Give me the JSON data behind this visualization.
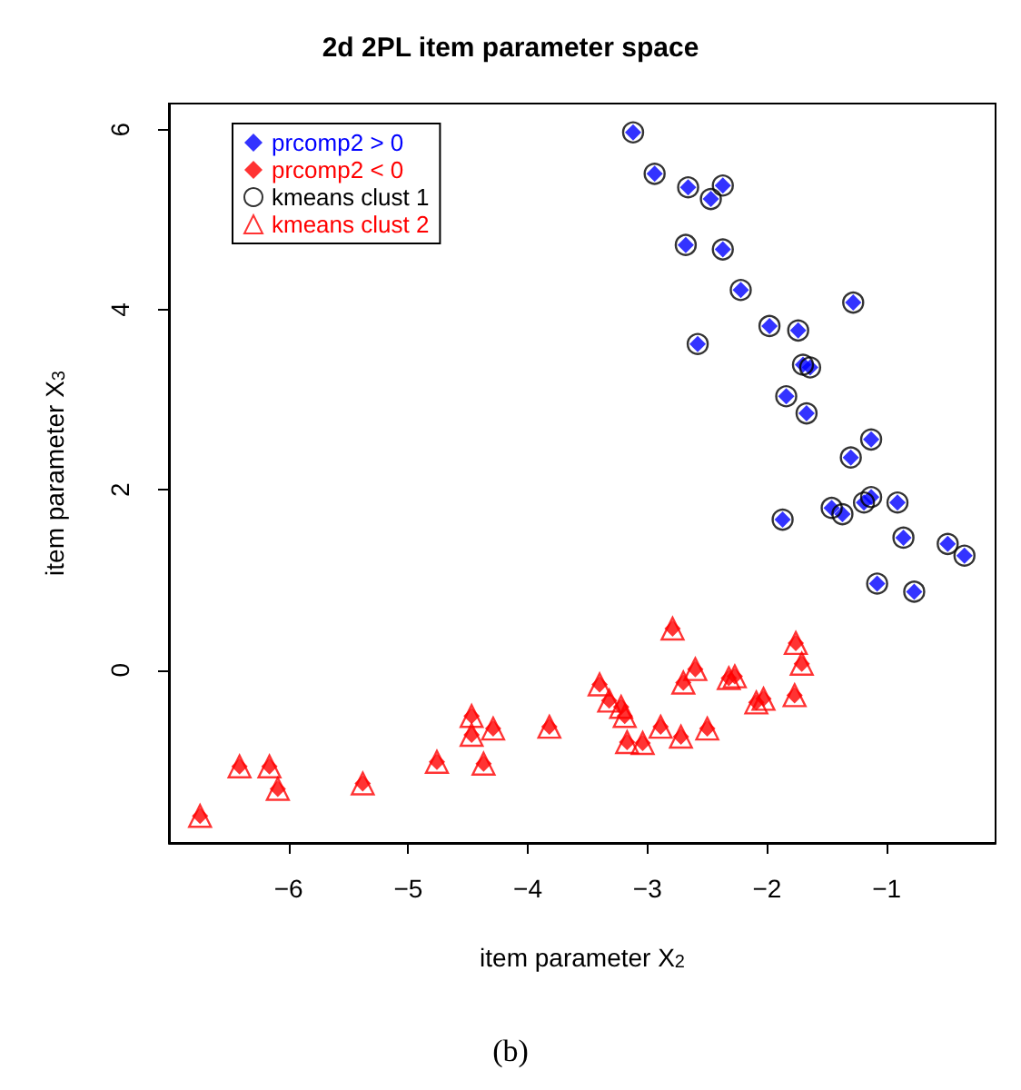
{
  "chart_data": {
    "type": "scatter",
    "title": "2d 2PL item parameter space",
    "xlabel": "item parameter X$_{2}$",
    "ylabel": "item parameter X$_{3}$",
    "xlim": [
      -7.0,
      -0.09
    ],
    "ylim": [
      -1.92,
      6.29
    ],
    "xticks": [
      -6,
      -5,
      -4,
      -3,
      -2,
      -1
    ],
    "yticks": [
      0,
      2,
      4,
      6
    ],
    "grid": false,
    "legend": "top left",
    "annotations": [
      "(b)"
    ],
    "series": [
      {
        "name": "prcomp2 > 0",
        "color": "#0000ff",
        "marker": "diamond",
        "x": [
          -3.12,
          -2.94,
          -2.66,
          -2.37,
          -2.47,
          -2.68,
          -2.37,
          -2.22,
          -1.28,
          -1.98,
          -1.74,
          -2.58,
          -1.7,
          -1.64,
          -1.84,
          -1.67,
          -1.13,
          -1.3,
          -1.46,
          -1.37,
          -1.19,
          -1.13,
          -0.91,
          -1.87,
          -0.86,
          -0.49,
          -0.35,
          -1.08,
          -0.77
        ],
        "values": [
          5.97,
          5.51,
          5.36,
          5.38,
          5.23,
          4.72,
          4.67,
          4.22,
          4.08,
          3.82,
          3.77,
          3.62,
          3.39,
          3.36,
          3.04,
          2.85,
          2.56,
          2.36,
          1.8,
          1.73,
          1.86,
          1.92,
          1.86,
          1.67,
          1.47,
          1.4,
          1.27,
          0.96,
          0.87
        ]
      },
      {
        "name": "prcomp2 < 0",
        "color": "#ff0000",
        "marker": "diamond",
        "x": [
          -2.79,
          -1.76,
          -1.71,
          -2.6,
          -2.7,
          -3.4,
          -2.32,
          -2.27,
          -3.32,
          -3.22,
          -3.19,
          -2.09,
          -2.03,
          -1.77,
          -4.47,
          -4.47,
          -4.29,
          -3.82,
          -2.89,
          -2.72,
          -2.5,
          -3.17,
          -3.04,
          -4.76,
          -4.37,
          -6.41,
          -6.16,
          -6.09,
          -5.38,
          -6.74
        ],
        "values": [
          0.46,
          0.3,
          0.07,
          0.01,
          -0.14,
          -0.16,
          -0.09,
          -0.07,
          -0.34,
          -0.41,
          -0.51,
          -0.36,
          -0.32,
          -0.28,
          -0.51,
          -0.72,
          -0.65,
          -0.63,
          -0.63,
          -0.74,
          -0.65,
          -0.8,
          -0.81,
          -1.02,
          -1.04,
          -1.07,
          -1.07,
          -1.32,
          -1.26,
          -1.62
        ]
      },
      {
        "name": "kmeans clust 1",
        "color": "#000000",
        "marker": "circle",
        "x": [
          -3.12,
          -2.94,
          -2.66,
          -2.37,
          -2.47,
          -2.68,
          -2.37,
          -2.22,
          -1.28,
          -1.98,
          -1.74,
          -2.58,
          -1.7,
          -1.64,
          -1.84,
          -1.67,
          -1.13,
          -1.3,
          -1.46,
          -1.37,
          -1.19,
          -1.13,
          -0.91,
          -1.87,
          -0.86,
          -0.49,
          -0.35,
          -1.08,
          -0.77
        ],
        "values": [
          5.97,
          5.51,
          5.36,
          5.38,
          5.23,
          4.72,
          4.67,
          4.22,
          4.08,
          3.82,
          3.77,
          3.62,
          3.39,
          3.36,
          3.04,
          2.85,
          2.56,
          2.36,
          1.8,
          1.73,
          1.86,
          1.92,
          1.86,
          1.67,
          1.47,
          1.4,
          1.27,
          0.96,
          0.87
        ]
      },
      {
        "name": "kmeans clust 2",
        "color": "#ff0000",
        "marker": "triangle",
        "x": [
          -2.79,
          -1.76,
          -1.71,
          -2.6,
          -2.7,
          -3.4,
          -2.32,
          -2.27,
          -3.32,
          -3.22,
          -3.19,
          -2.09,
          -2.03,
          -1.77,
          -4.47,
          -4.47,
          -4.29,
          -3.82,
          -2.89,
          -2.72,
          -2.5,
          -3.17,
          -3.04,
          -4.76,
          -4.37,
          -6.41,
          -6.16,
          -6.09,
          -5.38,
          -6.74
        ],
        "values": [
          0.46,
          0.3,
          0.07,
          0.01,
          -0.14,
          -0.16,
          -0.09,
          -0.07,
          -0.34,
          -0.41,
          -0.51,
          -0.36,
          -0.32,
          -0.28,
          -0.51,
          -0.72,
          -0.65,
          -0.63,
          -0.63,
          -0.74,
          -0.65,
          -0.8,
          -0.81,
          -1.02,
          -1.04,
          -1.07,
          -1.07,
          -1.32,
          -1.26,
          -1.62
        ]
      }
    ]
  }
}
